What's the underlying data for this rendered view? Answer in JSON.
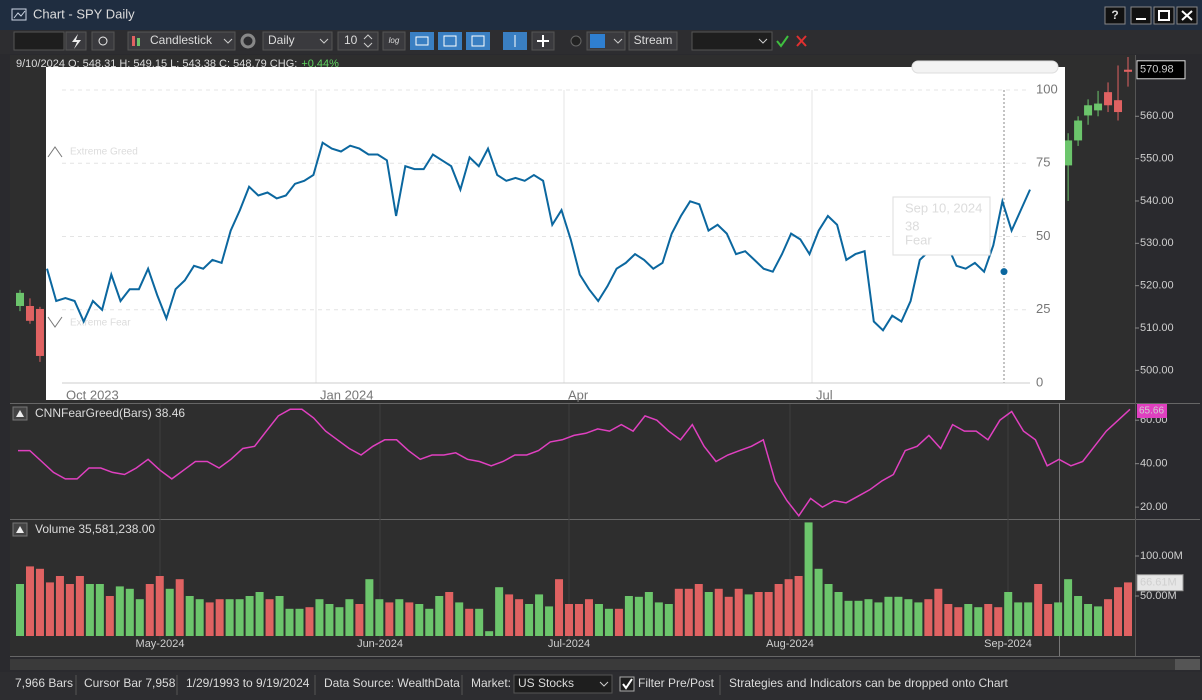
{
  "window": {
    "title": "Chart - SPY Daily",
    "help": "?"
  },
  "toolbar": {
    "chart_style": "Candlestick",
    "scale": "Daily",
    "bars": "10",
    "log": "log",
    "stream": "Stream"
  },
  "info": {
    "text": "9/10/2024 O: 548.31 H: 549.15 L: 543.38 C: 548.79 CHG:",
    "change": "+0.44%"
  },
  "overlay": {
    "type": "line",
    "color": "#0b679f",
    "values": [
      39,
      28,
      29,
      28,
      21,
      28,
      25,
      37,
      28,
      32,
      32,
      39,
      30,
      22,
      32,
      35,
      40,
      39,
      42,
      41,
      52,
      59,
      67,
      64,
      65,
      63,
      64,
      68,
      69,
      71,
      82,
      80,
      79,
      81,
      80,
      78,
      78,
      76,
      57,
      74,
      73,
      73,
      78,
      76,
      74,
      66,
      77,
      74,
      80,
      71,
      69,
      70,
      69,
      71,
      69,
      54,
      59,
      49,
      37,
      32,
      28,
      33,
      39,
      41,
      44,
      42,
      39,
      41,
      51,
      57,
      62,
      61,
      52,
      54,
      51,
      44,
      45,
      42,
      39,
      38,
      44,
      51,
      49,
      44,
      52,
      57,
      54,
      42,
      44,
      45,
      21,
      18,
      23,
      21,
      28,
      42,
      45,
      44,
      47,
      40,
      39,
      41,
      38,
      47,
      62,
      52,
      59,
      66
    ],
    "ylim": [
      0,
      100
    ],
    "yticks": [
      0,
      25,
      50,
      75,
      100
    ],
    "x_labels": [
      "Oct 2023",
      "Jan 2024",
      "Apr",
      "Jul"
    ],
    "annotations": [
      "Extreme Greed",
      "Extreme Fear"
    ],
    "tooltip": {
      "date": "Sep 10, 2024",
      "value": 38,
      "rating": "Fear"
    }
  },
  "price_pane": {
    "type": "candlestick",
    "up_color": "#6cc56c",
    "down_color": "#e06262",
    "ylim": [
      493,
      574
    ],
    "yticks": [
      {
        "value": 500,
        "label": "500.00"
      },
      {
        "value": 510,
        "label": "510.00"
      },
      {
        "value": 520,
        "label": "520.00"
      },
      {
        "value": 530,
        "label": "530.00"
      },
      {
        "value": 540,
        "label": "540.00"
      },
      {
        "value": 550,
        "label": "550.00"
      },
      {
        "value": 560,
        "label": "560.00"
      }
    ],
    "last_price": 570.98,
    "candles_left": {
      "open": [
        515.2,
        515.2,
        514.5
      ],
      "high": [
        519,
        517,
        515
      ],
      "low": [
        514,
        511,
        502
      ],
      "close": [
        518.3,
        511.7,
        503.4
      ]
    },
    "candles_right": {
      "open": [
        548.4,
        554.3,
        560.2,
        561.4,
        565.7,
        563.8,
        571
      ],
      "high": [
        556,
        560,
        564,
        566,
        568,
        572,
        574
      ],
      "low": [
        540,
        553,
        558,
        560,
        561,
        559,
        567
      ],
      "close": [
        554.3,
        559,
        562.6,
        563,
        562.6,
        561,
        570.5
      ]
    }
  },
  "indicator_pane": {
    "type": "line",
    "title": "CNNFearGreed(Bars) 38.46",
    "color": "#e040c0",
    "values": [
      46,
      46,
      41,
      36,
      33,
      33,
      38,
      38,
      36,
      35,
      38,
      42,
      37,
      33,
      37,
      41,
      41,
      38,
      42,
      47,
      48,
      55,
      62,
      65,
      65,
      61,
      55,
      51,
      47,
      44,
      48,
      51,
      51,
      46,
      42,
      44,
      44,
      45,
      42,
      41,
      39,
      41,
      44,
      44,
      46,
      50,
      51,
      53,
      54,
      56,
      55,
      58,
      55,
      62,
      60,
      55,
      51,
      58,
      48,
      41,
      44,
      46,
      48,
      51,
      32,
      23,
      16,
      24,
      20,
      23,
      22,
      25,
      28,
      32,
      35,
      46,
      48,
      53,
      47,
      58,
      55,
      55,
      51,
      60,
      64,
      55,
      51,
      39,
      42,
      39,
      41,
      48,
      55,
      60,
      65
    ],
    "ylim": [
      15,
      67
    ],
    "yticks": [
      {
        "value": 20,
        "label": "20.00"
      },
      {
        "value": 40,
        "label": "40.00"
      },
      {
        "value": 60,
        "label": "60.00"
      }
    ],
    "last_value": 65.66
  },
  "volume_pane": {
    "type": "bar",
    "title": "Volume 35,581,238.00",
    "values": [
      65,
      87,
      84,
      67,
      75,
      65,
      75,
      65,
      65,
      50,
      62,
      59,
      46,
      65,
      75,
      59,
      71,
      50,
      46,
      42,
      46,
      46,
      46,
      50,
      55,
      46,
      50,
      34,
      34,
      36,
      46,
      40,
      36,
      46,
      40,
      71,
      46,
      42,
      46,
      42,
      40,
      34,
      50,
      55,
      42,
      34,
      34,
      6,
      61,
      52,
      46,
      40,
      52,
      37,
      71,
      40,
      40,
      46,
      40,
      34,
      34,
      50,
      49,
      55,
      42,
      40,
      59,
      59,
      65,
      55,
      59,
      49,
      59,
      52,
      55,
      55,
      65,
      71,
      75,
      142,
      84,
      65,
      55,
      44,
      44,
      46,
      42,
      49,
      49,
      46,
      42,
      46,
      59,
      40,
      36,
      40,
      36,
      40,
      36,
      55,
      42,
      42,
      65,
      40,
      42,
      71,
      50,
      40,
      37,
      46,
      61,
      67
    ],
    "colors": [
      "#6cc56c",
      "#e06262",
      "#e06262",
      "#e06262",
      "#e06262",
      "#e06262",
      "#e06262",
      "#6cc56c",
      "#6cc56c",
      "#e06262",
      "#6cc56c",
      "#6cc56c",
      "#6cc56c",
      "#e06262",
      "#e06262",
      "#6cc56c",
      "#e06262",
      "#6cc56c",
      "#6cc56c",
      "#e06262",
      "#e06262",
      "#6cc56c",
      "#6cc56c",
      "#6cc56c",
      "#6cc56c",
      "#e06262",
      "#6cc56c",
      "#6cc56c",
      "#6cc56c",
      "#e06262",
      "#6cc56c",
      "#6cc56c",
      "#6cc56c",
      "#6cc56c",
      "#e06262",
      "#6cc56c",
      "#6cc56c",
      "#e06262",
      "#6cc56c",
      "#e06262",
      "#6cc56c",
      "#6cc56c",
      "#6cc56c",
      "#e06262",
      "#6cc56c",
      "#e06262",
      "#6cc56c",
      "#6cc56c",
      "#6cc56c",
      "#e06262",
      "#e06262",
      "#6cc56c",
      "#6cc56c",
      "#6cc56c",
      "#e06262",
      "#e06262",
      "#e06262",
      "#e06262",
      "#6cc56c",
      "#6cc56c",
      "#e06262",
      "#6cc56c",
      "#6cc56c",
      "#6cc56c",
      "#6cc56c",
      "#6cc56c",
      "#e06262",
      "#e06262",
      "#e06262",
      "#6cc56c",
      "#e06262",
      "#e06262",
      "#e06262",
      "#6cc56c",
      "#e06262",
      "#e06262",
      "#e06262",
      "#e06262",
      "#e06262",
      "#6cc56c",
      "#6cc56c",
      "#6cc56c",
      "#6cc56c",
      "#6cc56c",
      "#6cc56c",
      "#6cc56c",
      "#6cc56c",
      "#6cc56c",
      "#6cc56c",
      "#6cc56c",
      "#6cc56c",
      "#e06262",
      "#e06262",
      "#e06262",
      "#e06262",
      "#6cc56c",
      "#6cc56c",
      "#e06262",
      "#e06262",
      "#6cc56c",
      "#6cc56c",
      "#6cc56c",
      "#e06262",
      "#e06262",
      "#6cc56c",
      "#6cc56c",
      "#6cc56c",
      "#6cc56c",
      "#6cc56c",
      "#e06262",
      "#e06262",
      "#e06262"
    ],
    "ylim": [
      0,
      145
    ],
    "yticks": [
      {
        "value": 50,
        "label": "50.00M"
      },
      {
        "value": 100,
        "label": "100.00M"
      }
    ],
    "last_value": {
      "value": 66.61,
      "label": "66.61M"
    }
  },
  "x_labels": [
    "May-2024",
    "Jun-2024",
    "Jul-2024",
    "Aug-2024",
    "Sep-2024"
  ],
  "status": {
    "bars": "7,966 Bars",
    "cursor": "Cursor Bar 7,958",
    "range": "1/29/1993 to 9/19/2024",
    "source": "Data Source: WealthData",
    "market_label": "Market:",
    "market": "US Stocks",
    "filter": "Filter Pre/Post",
    "hint": "Strategies and Indicators can be dropped onto Chart"
  }
}
